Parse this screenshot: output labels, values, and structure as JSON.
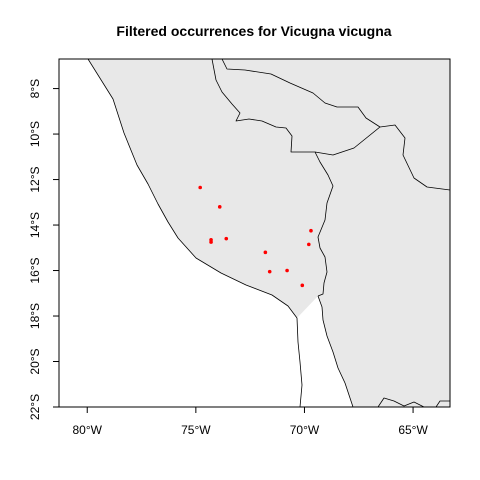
{
  "map": {
    "title": "Filtered occurrences for Vicugna vicugna",
    "x_ticks": [
      {
        "value": -80,
        "label": "80°W"
      },
      {
        "value": -75,
        "label": "75°W"
      },
      {
        "value": -70,
        "label": "70°W"
      },
      {
        "value": -65,
        "label": "65°W"
      }
    ],
    "y_ticks": [
      {
        "value": -8,
        "label": "8°S"
      },
      {
        "value": -10,
        "label": "10°S"
      },
      {
        "value": -12,
        "label": "12°S"
      },
      {
        "value": -14,
        "label": "14°S"
      },
      {
        "value": -16,
        "label": "16°S"
      },
      {
        "value": -18,
        "label": "18°S"
      },
      {
        "value": -20,
        "label": "20°S"
      },
      {
        "value": -22,
        "label": "22°S"
      }
    ],
    "xlim": [
      -81.3,
      -63.3
    ],
    "ylim": [
      -22.0,
      -6.7
    ],
    "colors": {
      "land": "#e8e8e8",
      "border": "#000000",
      "points": "#ff0000",
      "background": "#ffffff"
    },
    "occurrences": [
      {
        "lon": -74.8,
        "lat": -12.35
      },
      {
        "lon": -73.9,
        "lat": -13.2
      },
      {
        "lon": -73.6,
        "lat": -14.6
      },
      {
        "lon": -74.3,
        "lat": -14.65
      },
      {
        "lon": -74.3,
        "lat": -14.75
      },
      {
        "lon": -71.8,
        "lat": -15.2
      },
      {
        "lon": -69.7,
        "lat": -14.25
      },
      {
        "lon": -69.8,
        "lat": -14.85
      },
      {
        "lon": -71.6,
        "lat": -16.05
      },
      {
        "lon": -70.8,
        "lat": -16.0
      },
      {
        "lon": -70.1,
        "lat": -16.65
      }
    ]
  }
}
